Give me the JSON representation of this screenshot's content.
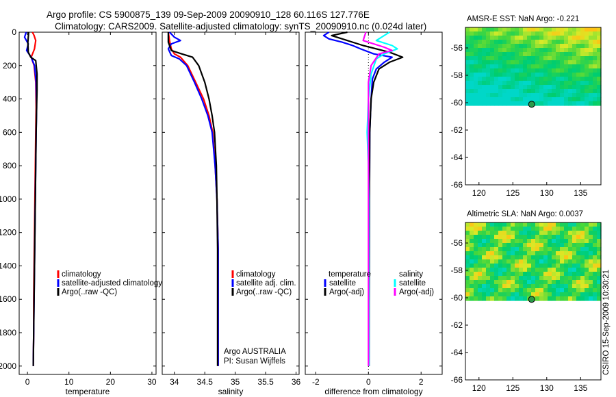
{
  "header": {
    "line1": "Argo profile: CS 5900875_139 09-Sep-2009 20090910_128 60.116S 127.776E",
    "line2": "Climatology: CARS2009. Satellite-adjusted climatology: synTS_20090910.nc (0.024d later)"
  },
  "footer": {
    "credit": "CSIRO 15-Sep-2009 10:30:21"
  },
  "colors": {
    "climatology": "#ff0000",
    "satellite": "#0000ff",
    "argo": "#000000",
    "salinity_satellite": "#00ffff",
    "salinity_argo": "#ff00ff"
  },
  "chart_data": [
    {
      "type": "line",
      "id": "temperature",
      "xlabel": "temperature",
      "xlim": [
        -2,
        31
      ],
      "ylim": [
        2050,
        0
      ],
      "xticks": [
        "0",
        "10",
        "20",
        "30"
      ],
      "yticks": [
        "0",
        "200",
        "400",
        "600",
        "800",
        "1000",
        "1200",
        "1400",
        "1600",
        "1800",
        "2000"
      ],
      "legend": [
        "climatology",
        "satellite-adjusted climatology",
        "Argo(..raw -QC)"
      ],
      "series": [
        {
          "name": "climatology",
          "color": "#ff0000",
          "points": [
            [
              1.2,
              0
            ],
            [
              1.6,
              20
            ],
            [
              2.0,
              50
            ],
            [
              1.7,
              100
            ],
            [
              0.9,
              150
            ],
            [
              1.6,
              200
            ],
            [
              2.0,
              300
            ],
            [
              2.1,
              450
            ],
            [
              2.0,
              600
            ],
            [
              1.9,
              800
            ],
            [
              1.8,
              1000
            ],
            [
              1.7,
              1200
            ],
            [
              1.6,
              1400
            ],
            [
              1.5,
              1600
            ],
            [
              1.5,
              1800
            ],
            [
              1.4,
              2000
            ]
          ]
        },
        {
          "name": "satellite-adjusted climatology",
          "color": "#0000ff",
          "points": [
            [
              -0.3,
              0
            ],
            [
              -0.7,
              30
            ],
            [
              0.2,
              70
            ],
            [
              -0.2,
              110
            ],
            [
              0.9,
              150
            ],
            [
              1.7,
              200
            ],
            [
              2.1,
              300
            ],
            [
              2.2,
              450
            ],
            [
              2.1,
              600
            ],
            [
              2.0,
              800
            ],
            [
              1.9,
              1000
            ],
            [
              1.8,
              1200
            ],
            [
              1.7,
              1400
            ],
            [
              1.6,
              1600
            ],
            [
              1.5,
              1800
            ],
            [
              1.4,
              2000
            ]
          ]
        },
        {
          "name": "Argo(..raw -QC)",
          "color": "#000000",
          "points": [
            [
              0.3,
              0
            ],
            [
              0.1,
              60
            ],
            [
              0.2,
              120
            ],
            [
              0.8,
              150
            ],
            [
              2.0,
              170
            ],
            [
              2.3,
              250
            ],
            [
              2.3,
              350
            ],
            [
              2.2,
              450
            ],
            [
              2.1,
              600
            ],
            [
              2.0,
              800
            ],
            [
              1.9,
              1000
            ],
            [
              1.8,
              1200
            ],
            [
              1.7,
              1400
            ],
            [
              1.6,
              1600
            ],
            [
              1.5,
              1800
            ],
            [
              1.4,
              2000
            ]
          ]
        }
      ]
    },
    {
      "type": "line",
      "id": "salinity",
      "xlabel": "salinity",
      "xlim": [
        33.8,
        36.05
      ],
      "ylim": [
        2050,
        0
      ],
      "xticks": [
        "34",
        "34.5",
        "35",
        "35.5",
        "36"
      ],
      "legend": [
        "climatology",
        "satellite adj. clim.",
        "Argo(..raw -QC)"
      ],
      "annotation": [
        "Argo AUSTRALIA",
        "PI: Susan Wijffels"
      ],
      "series": [
        {
          "name": "climatology",
          "color": "#ff0000",
          "points": [
            [
              33.9,
              0
            ],
            [
              33.92,
              50
            ],
            [
              33.95,
              100
            ],
            [
              34.0,
              130
            ],
            [
              34.1,
              150
            ],
            [
              34.22,
              200
            ],
            [
              34.35,
              300
            ],
            [
              34.48,
              400
            ],
            [
              34.57,
              500
            ],
            [
              34.63,
              600
            ],
            [
              34.67,
              800
            ],
            [
              34.7,
              1000
            ],
            [
              34.72,
              1300
            ],
            [
              34.72,
              1600
            ],
            [
              34.72,
              2000
            ]
          ]
        },
        {
          "name": "satellite adj. clim.",
          "color": "#0000ff",
          "points": [
            [
              33.92,
              0
            ],
            [
              34.0,
              30
            ],
            [
              34.1,
              50
            ],
            [
              33.95,
              70
            ],
            [
              33.9,
              100
            ],
            [
              33.95,
              140
            ],
            [
              34.08,
              160
            ],
            [
              34.2,
              200
            ],
            [
              34.33,
              300
            ],
            [
              34.45,
              400
            ],
            [
              34.55,
              500
            ],
            [
              34.62,
              600
            ],
            [
              34.67,
              800
            ],
            [
              34.7,
              1000
            ],
            [
              34.72,
              1300
            ],
            [
              34.72,
              1600
            ],
            [
              34.72,
              2000
            ]
          ]
        },
        {
          "name": "Argo(..raw -QC)",
          "color": "#000000",
          "points": [
            [
              33.9,
              0
            ],
            [
              33.9,
              60
            ],
            [
              33.95,
              110
            ],
            [
              34.12,
              130
            ],
            [
              34.3,
              150
            ],
            [
              34.4,
              200
            ],
            [
              34.5,
              300
            ],
            [
              34.57,
              400
            ],
            [
              34.62,
              500
            ],
            [
              34.66,
              600
            ],
            [
              34.69,
              800
            ],
            [
              34.7,
              1000
            ],
            [
              34.71,
              1300
            ],
            [
              34.71,
              1600
            ],
            [
              34.71,
              2000
            ]
          ]
        }
      ]
    },
    {
      "type": "line",
      "id": "difference",
      "xlabel": "difference from climatology",
      "xlim": [
        -2.4,
        2.8
      ],
      "ylim": [
        2050,
        0
      ],
      "xticks": [
        "-2",
        "0",
        "2"
      ],
      "legend_headers": [
        "temperature",
        "salinity"
      ],
      "legend": [
        "satellite",
        "Argo(-adj)",
        "satellite",
        "Argo(-adj)"
      ],
      "series": [
        {
          "name": "temperature satellite",
          "color": "#0000ff",
          "points": [
            [
              -1.5,
              0
            ],
            [
              -1.7,
              20
            ],
            [
              -1.5,
              40
            ],
            [
              -1.0,
              60
            ],
            [
              -0.6,
              80
            ],
            [
              -0.3,
              100
            ],
            [
              0.2,
              130
            ],
            [
              0.9,
              150
            ],
            [
              0.6,
              180
            ],
            [
              0.3,
              220
            ],
            [
              0.15,
              280
            ],
            [
              0.1,
              400
            ],
            [
              0.05,
              600
            ],
            [
              0.04,
              1000
            ],
            [
              0.03,
              1500
            ],
            [
              0.02,
              2000
            ]
          ]
        },
        {
          "name": "temperature Argo(-adj)",
          "color": "#000000",
          "points": [
            [
              -0.8,
              0
            ],
            [
              -1.4,
              20
            ],
            [
              -0.8,
              50
            ],
            [
              -0.2,
              80
            ],
            [
              0.8,
              120
            ],
            [
              1.3,
              150
            ],
            [
              0.8,
              180
            ],
            [
              0.4,
              220
            ],
            [
              0.2,
              300
            ],
            [
              0.1,
              400
            ],
            [
              0.05,
              600
            ],
            [
              0.04,
              1000
            ],
            [
              0.03,
              1500
            ],
            [
              0.02,
              2000
            ]
          ]
        },
        {
          "name": "salinity satellite",
          "color": "#00ffff",
          "points": [
            [
              0.8,
              0
            ],
            [
              0.3,
              50
            ],
            [
              0.9,
              80
            ],
            [
              1.1,
              100
            ],
            [
              0.6,
              130
            ],
            [
              0.3,
              160
            ],
            [
              0.1,
              250
            ],
            [
              0.0,
              400
            ],
            [
              -0.05,
              600
            ],
            [
              0.0,
              800
            ],
            [
              0.02,
              1000
            ],
            [
              0.02,
              1500
            ],
            [
              0.02,
              2000
            ]
          ]
        },
        {
          "name": "salinity Argo(-adj)",
          "color": "#ff00ff",
          "points": [
            [
              -0.1,
              0
            ],
            [
              -0.2,
              50
            ],
            [
              0.6,
              90
            ],
            [
              0.9,
              110
            ],
            [
              0.4,
              130
            ],
            [
              0.1,
              200
            ],
            [
              0.0,
              300
            ],
            [
              0.0,
              600
            ],
            [
              0.0,
              1000
            ],
            [
              0.0,
              2000
            ]
          ]
        }
      ]
    },
    {
      "type": "heatmap",
      "id": "amsre-sst",
      "title": "AMSR-E SST: NaN Argo: -0.221",
      "xlim": [
        118,
        138
      ],
      "ylim": [
        -66,
        -54.5
      ],
      "xticks": [
        "120",
        "125",
        "130",
        "135"
      ],
      "yticks": [
        "-56",
        "-58",
        "-60",
        "-62",
        "-64",
        "-66"
      ],
      "data_extent_lat": [
        -54.5,
        -60.2
      ],
      "marker": {
        "lon": 127.776,
        "lat": -60.116
      }
    },
    {
      "type": "heatmap",
      "id": "altimetric-sla",
      "title": "Altimetric SLA: NaN Argo: 0.0037",
      "xlim": [
        118,
        138
      ],
      "ylim": [
        -66,
        -54.5
      ],
      "xticks": [
        "120",
        "125",
        "130",
        "135"
      ],
      "yticks": [
        "-56",
        "-58",
        "-60",
        "-62",
        "-64",
        "-66"
      ],
      "data_extent_lat": [
        -54.5,
        -60.2
      ],
      "marker": {
        "lon": 127.776,
        "lat": -60.116
      }
    }
  ]
}
